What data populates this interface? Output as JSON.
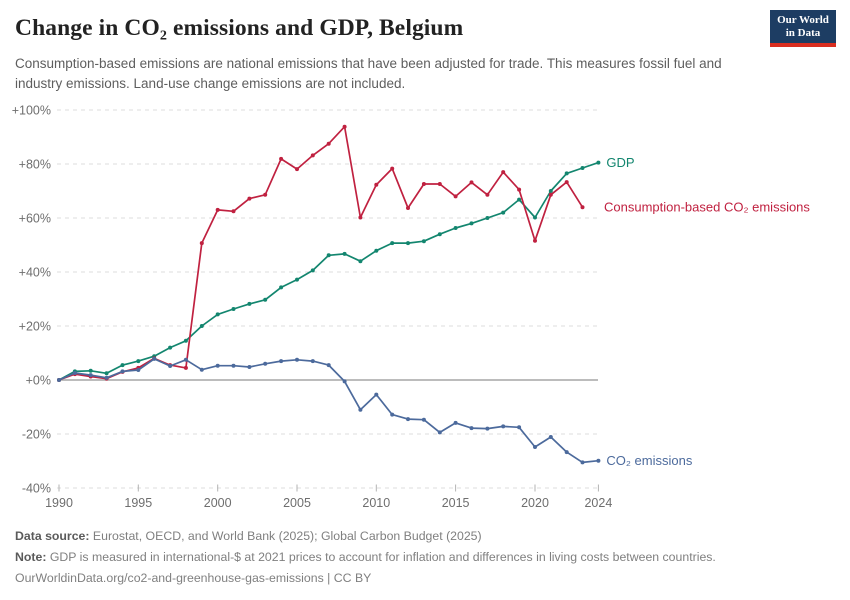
{
  "header": {
    "title": "Change in CO₂ emissions and GDP, Belgium",
    "subtitle": "Consumption-based emissions are national emissions that have been adjusted for trade. This measures fossil fuel and industry emissions. Land-use change emissions are not included.",
    "logo": {
      "line1": "Our World",
      "line2": "in Data"
    }
  },
  "chart_data": {
    "type": "line",
    "title": "Change in CO₂ emissions and GDP, Belgium",
    "x_unit": "year",
    "xlim": [
      1990,
      2024
    ],
    "ylim": [
      -40,
      100
    ],
    "grid": "dashed-horizontal",
    "zero_line": true,
    "legend_position": "end-of-line-labels",
    "xticks": [
      1990,
      1995,
      2000,
      2005,
      2010,
      2015,
      2020,
      2024
    ],
    "yticks": [
      {
        "v": 100,
        "label": "+100%"
      },
      {
        "v": 80,
        "label": "+80%"
      },
      {
        "v": 60,
        "label": "+60%"
      },
      {
        "v": 40,
        "label": "+40%"
      },
      {
        "v": 20,
        "label": "+20%"
      },
      {
        "v": 0,
        "label": "+0%"
      },
      {
        "v": -20,
        "label": "-20%"
      },
      {
        "v": -40,
        "label": "-40%"
      }
    ],
    "series": [
      {
        "name": "GDP",
        "slug": "gdp",
        "label": "GDP",
        "color": "#13866F",
        "start_year": 1990,
        "values": [
          0,
          3.2,
          3.4,
          2.5,
          5.5,
          7,
          8.8,
          12,
          14.5,
          20,
          24.3,
          26.3,
          28.2,
          29.7,
          34.3,
          37.2,
          40.6,
          46.2,
          46.7,
          44,
          47.9,
          50.7,
          50.7,
          51.4,
          54,
          56.3,
          58,
          60,
          62,
          66.8,
          60.2,
          70,
          76.5,
          78.5,
          80.5
        ]
      },
      {
        "name": "Consumption-based CO₂ emissions",
        "slug": "consumption-co2",
        "label": "Consumption-based CO₂ emissions",
        "color": "#C02140",
        "start_year": 1990,
        "values": [
          0,
          2.2,
          1.3,
          0.5,
          3,
          4.5,
          8,
          5.5,
          4.5,
          50.7,
          63,
          62.5,
          67.2,
          68.6,
          81.9,
          78.1,
          83.2,
          87.5,
          93.8,
          60.2,
          72.3,
          78.3,
          63.7,
          72.6,
          72.6,
          68,
          73.2,
          68.6,
          77,
          70.5,
          51.6,
          68.6,
          73.3,
          64
        ]
      },
      {
        "name": "CO₂ emissions",
        "slug": "co2",
        "label": "CO₂ emissions",
        "color": "#4C6A9C",
        "start_year": 1990,
        "values": [
          0,
          2.6,
          1.8,
          0.8,
          3.2,
          3.7,
          7.8,
          5.2,
          7.5,
          3.8,
          5.3,
          5.3,
          4.8,
          6,
          7,
          7.5,
          7,
          5.5,
          -0.5,
          -11,
          -5.4,
          -12.8,
          -14.5,
          -14.7,
          -19.4,
          -15.9,
          -17.8,
          -18,
          -17.2,
          -17.5,
          -24.8,
          -21.1,
          -26.7,
          -30.5,
          -29.9
        ]
      }
    ]
  },
  "footer": {
    "datasource_label": "Data source:",
    "datasource_text": "Eurostat, OECD, and World Bank (2025); Global Carbon Budget (2025)",
    "note_label": "Note:",
    "note_text": "GDP is measured in international-$ at 2021 prices to account for inflation and differences in living costs between countries.",
    "url": "OurWorldinData.org/co2-and-greenhouse-gas-emissions",
    "divider": "|",
    "license": "CC BY"
  }
}
